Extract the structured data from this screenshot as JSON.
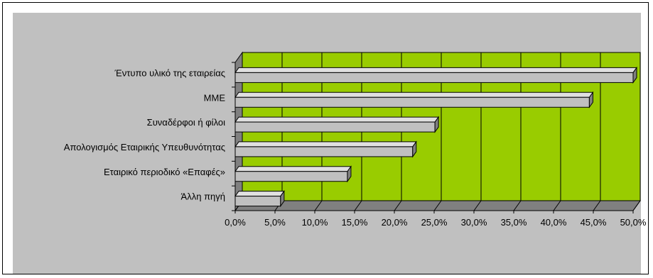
{
  "chart_data": {
    "type": "bar",
    "orientation": "horizontal",
    "style": "3d",
    "categories": [
      "Έντυπο υλικό της εταιρείας",
      "ΜΜΕ",
      "Συναδέρφοι ή φίλοι",
      "Απολογισμός Εταιρικής Υπευθυνότητας",
      "Εταιρικό περιοδικό «Επαφές»",
      "Άλλη πηγή"
    ],
    "values": [
      50.0,
      44.5,
      25.1,
      22.3,
      14.1,
      5.7
    ],
    "xlim": [
      0,
      50
    ],
    "xticks": [
      "0,0%",
      "5,0%",
      "10,0%",
      "15,0%",
      "20,0%",
      "25,0%",
      "30,0%",
      "35,0%",
      "40,0%",
      "45,0%",
      "50,0%"
    ],
    "grid": true,
    "legend": "none",
    "title": "",
    "xlabel": "",
    "ylabel": "",
    "colors": {
      "plot_background": "#99cc00",
      "bar_fill": "#c0c0c0",
      "bar_top": "#e0e0e0",
      "bar_side": "#808080",
      "chart_background": "#c0c0c0",
      "grid": "#000000"
    }
  }
}
